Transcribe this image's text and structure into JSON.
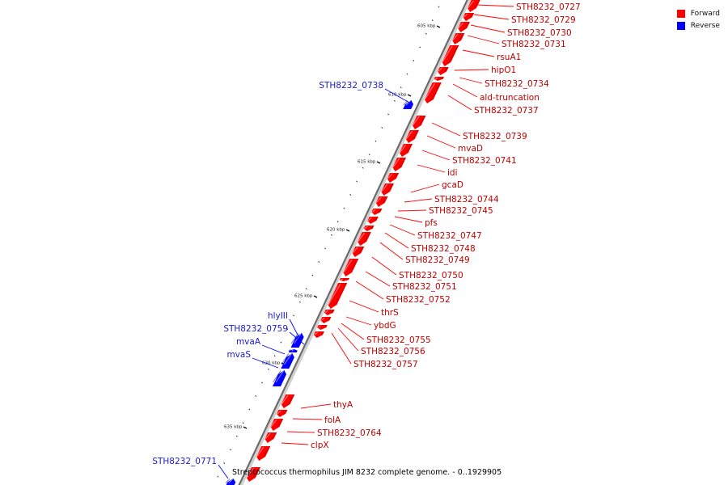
{
  "legend": {
    "forward_label": "Forward",
    "reverse_label": "Reverse",
    "forward_color": "#ff0000",
    "reverse_color": "#0000ff"
  },
  "caption": "Streptococcus thermophilus JIM 8232 complete genome. - 0..1929905",
  "ticks": [
    {
      "label": "605 kbp"
    },
    {
      "label": "610 kbp"
    },
    {
      "label": "615 kbp"
    },
    {
      "label": "620 kbp"
    },
    {
      "label": "625 kbp"
    },
    {
      "label": "630 kbp"
    },
    {
      "label": "635 kbp"
    }
  ],
  "forward_genes": [
    {
      "label": "STH8232_0727"
    },
    {
      "label": "STH8232_0729"
    },
    {
      "label": "STH8232_0730"
    },
    {
      "label": "STH8232_0731"
    },
    {
      "label": "rsuA1"
    },
    {
      "label": "hipO1"
    },
    {
      "label": "STH8232_0734"
    },
    {
      "label": "ald-truncation"
    },
    {
      "label": "STH8232_0737"
    },
    {
      "label": "STH8232_0739"
    },
    {
      "label": "mvaD"
    },
    {
      "label": "STH8232_0741"
    },
    {
      "label": "idi"
    },
    {
      "label": "gcaD"
    },
    {
      "label": "STH8232_0744"
    },
    {
      "label": "STH8232_0745"
    },
    {
      "label": "pfs"
    },
    {
      "label": "STH8232_0747"
    },
    {
      "label": "STH8232_0748"
    },
    {
      "label": "STH8232_0749"
    },
    {
      "label": "STH8232_0750"
    },
    {
      "label": "STH8232_0751"
    },
    {
      "label": "STH8232_0752"
    },
    {
      "label": "thrS"
    },
    {
      "label": "ybdG"
    },
    {
      "label": "STH8232_0755"
    },
    {
      "label": "STH8232_0756"
    },
    {
      "label": "STH8232_0757"
    },
    {
      "label": "thyA"
    },
    {
      "label": "folA"
    },
    {
      "label": "STH8232_0764"
    },
    {
      "label": "clpX"
    }
  ],
  "reverse_genes": [
    {
      "label": "STH8232_0738"
    },
    {
      "label": "hlyIII"
    },
    {
      "label": "STH8232_0759"
    },
    {
      "label": "mvaA"
    },
    {
      "label": "mvaS"
    },
    {
      "label": "STH8232_0771"
    }
  ]
}
